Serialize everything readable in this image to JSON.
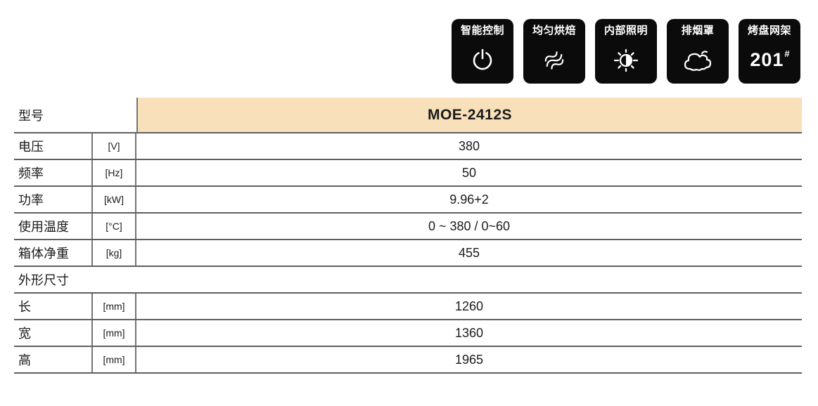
{
  "colors": {
    "model_cell_bg": "#f8e0ba",
    "row_line": "#5f5f5f",
    "column_divider": "#757575",
    "badge_bg": "#0b0b0b",
    "badge_fg": "#ffffff",
    "text": "#1b1b1b"
  },
  "feature_badges": [
    {
      "name": "smart-control",
      "label": "智能控制",
      "icon": "power-icon"
    },
    {
      "name": "even-baking",
      "label": "均匀烘焙",
      "icon": "heat-waves-icon"
    },
    {
      "name": "interior-lighting",
      "label": "内部照明",
      "icon": "brightness-icon"
    },
    {
      "name": "exhaust-hood",
      "label": "排烟罩",
      "icon": "smoke-cloud-icon"
    },
    {
      "name": "tray-rack",
      "label": "烤盘网架",
      "icon": "rack-count-badge",
      "text": "201",
      "text_sup": "#"
    }
  ],
  "spec_table": {
    "rows": [
      {
        "name": "model",
        "type": "model",
        "label": "型号",
        "unit": "",
        "value": "MOE-2412S"
      },
      {
        "name": "voltage",
        "type": "normal",
        "label": "电压",
        "unit": "[V]",
        "value": "380"
      },
      {
        "name": "frequency",
        "type": "normal",
        "label": "频率",
        "unit": "[Hz]",
        "value": "50"
      },
      {
        "name": "power",
        "type": "normal",
        "label": "功率",
        "unit": "[kW]",
        "value": "9.96+2"
      },
      {
        "name": "operating-temperature",
        "type": "normal",
        "label": "使用温度",
        "unit": "[°C]",
        "value": "0 ~ 380 / 0~60"
      },
      {
        "name": "cabinet-net-weight",
        "type": "normal",
        "label": "箱体净重",
        "unit": "[kg]",
        "value": "455"
      },
      {
        "name": "overall-dimensions",
        "type": "section",
        "label": "外形尺寸"
      },
      {
        "name": "length",
        "type": "normal",
        "label": "长",
        "unit": "[mm]",
        "value": "1260"
      },
      {
        "name": "width",
        "type": "normal",
        "label": "宽",
        "unit": "[mm]",
        "value": "1360"
      },
      {
        "name": "height",
        "type": "normal",
        "label": "高",
        "unit": "[mm]",
        "value": "1965"
      }
    ]
  }
}
